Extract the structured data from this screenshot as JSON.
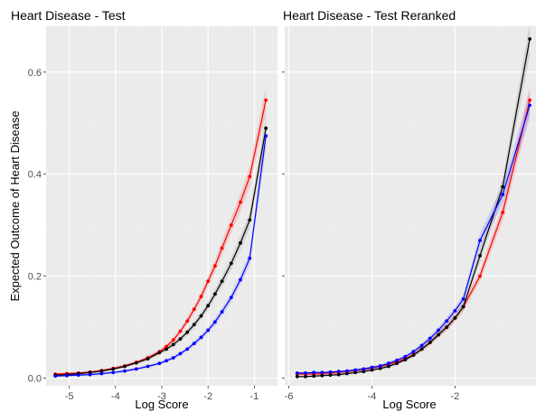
{
  "chart_data": [
    {
      "type": "line",
      "title": "Heart Disease - Test",
      "xlabel": "Log Score",
      "ylabel": "Expected Outcome of Heart Disease",
      "xlim": [
        -5.5,
        -0.5
      ],
      "ylim": [
        -0.015,
        0.69
      ],
      "x_ticks": [
        -5,
        -4,
        -3,
        -2,
        -1
      ],
      "x_tick_labels": [
        "-5",
        "-4",
        "-3",
        "-2",
        "-1"
      ],
      "y_ticks": [
        0.0,
        0.2,
        0.4,
        0.6
      ],
      "y_tick_labels": [
        "0.0",
        "0.2",
        "0.4",
        "0.6"
      ],
      "grid": true,
      "series": [
        {
          "color": "#ff0000",
          "x": [
            -5.3,
            -5.05,
            -4.8,
            -4.55,
            -4.3,
            -4.05,
            -3.8,
            -3.55,
            -3.3,
            -3.05,
            -2.9,
            -2.75,
            -2.6,
            -2.45,
            -2.3,
            -2.15,
            -2.0,
            -1.85,
            -1.7,
            -1.5,
            -1.3,
            -1.1,
            -0.75
          ],
          "y": [
            0.008,
            0.009,
            0.01,
            0.012,
            0.015,
            0.019,
            0.024,
            0.031,
            0.04,
            0.052,
            0.062,
            0.075,
            0.092,
            0.112,
            0.135,
            0.16,
            0.19,
            0.22,
            0.255,
            0.3,
            0.345,
            0.395,
            0.545
          ]
        },
        {
          "color": "#000000",
          "x": [
            -5.3,
            -5.05,
            -4.8,
            -4.55,
            -4.3,
            -4.05,
            -3.8,
            -3.55,
            -3.3,
            -3.05,
            -2.9,
            -2.75,
            -2.6,
            -2.45,
            -2.3,
            -2.15,
            -2.0,
            -1.85,
            -1.7,
            -1.5,
            -1.3,
            -1.1,
            -0.75
          ],
          "y": [
            0.006,
            0.007,
            0.009,
            0.011,
            0.014,
            0.018,
            0.023,
            0.03,
            0.038,
            0.05,
            0.057,
            0.066,
            0.077,
            0.09,
            0.105,
            0.122,
            0.142,
            0.165,
            0.19,
            0.225,
            0.265,
            0.31,
            0.49
          ]
        },
        {
          "color": "#0000ff",
          "x": [
            -5.3,
            -5.05,
            -4.8,
            -4.55,
            -4.3,
            -4.05,
            -3.8,
            -3.55,
            -3.3,
            -3.05,
            -2.9,
            -2.75,
            -2.6,
            -2.45,
            -2.3,
            -2.15,
            -2.0,
            -1.85,
            -1.7,
            -1.5,
            -1.3,
            -1.1,
            -0.75
          ],
          "y": [
            0.004,
            0.005,
            0.006,
            0.007,
            0.009,
            0.011,
            0.014,
            0.018,
            0.023,
            0.029,
            0.034,
            0.04,
            0.048,
            0.057,
            0.068,
            0.08,
            0.094,
            0.11,
            0.13,
            0.158,
            0.193,
            0.235,
            0.475
          ]
        }
      ]
    },
    {
      "type": "line",
      "title": "Heart Disease - Test Reranked",
      "xlabel": "Log Score",
      "xlim": [
        -6.1,
        -0.05
      ],
      "ylim": [
        -0.015,
        0.69
      ],
      "x_ticks": [
        -6,
        -4,
        -2
      ],
      "x_tick_labels": [
        "-6",
        "-4",
        "-2"
      ],
      "y_ticks": [
        0.0,
        0.2,
        0.4,
        0.6
      ],
      "grid": true,
      "series": [
        {
          "color": "#ff0000",
          "x": [
            -5.8,
            -5.6,
            -5.4,
            -5.2,
            -5.0,
            -4.8,
            -4.6,
            -4.4,
            -4.2,
            -4.0,
            -3.8,
            -3.6,
            -3.4,
            -3.2,
            -3.0,
            -2.8,
            -2.6,
            -2.4,
            -2.2,
            -2.0,
            -1.8,
            -1.4,
            -0.85,
            -0.2
          ],
          "y": [
            0.008,
            0.008,
            0.008,
            0.009,
            0.01,
            0.011,
            0.013,
            0.015,
            0.017,
            0.02,
            0.023,
            0.027,
            0.032,
            0.038,
            0.046,
            0.057,
            0.07,
            0.085,
            0.1,
            0.118,
            0.14,
            0.2,
            0.325,
            0.545
          ]
        },
        {
          "color": "#000000",
          "x": [
            -5.8,
            -5.6,
            -5.4,
            -5.2,
            -5.0,
            -4.8,
            -4.6,
            -4.4,
            -4.2,
            -4.0,
            -3.8,
            -3.6,
            -3.4,
            -3.2,
            -3.0,
            -2.8,
            -2.6,
            -2.4,
            -2.2,
            -2.0,
            -1.8,
            -1.4,
            -0.85,
            -0.2
          ],
          "y": [
            0.003,
            0.003,
            0.004,
            0.005,
            0.006,
            0.007,
            0.009,
            0.011,
            0.013,
            0.016,
            0.019,
            0.023,
            0.029,
            0.036,
            0.045,
            0.057,
            0.07,
            0.085,
            0.1,
            0.118,
            0.14,
            0.24,
            0.375,
            0.665
          ]
        },
        {
          "color": "#0000ff",
          "x": [
            -5.8,
            -5.6,
            -5.4,
            -5.2,
            -5.0,
            -4.8,
            -4.6,
            -4.4,
            -4.2,
            -4.0,
            -3.8,
            -3.6,
            -3.4,
            -3.2,
            -3.0,
            -2.8,
            -2.6,
            -2.4,
            -2.2,
            -2.0,
            -1.8,
            -1.4,
            -0.85,
            -0.2
          ],
          "y": [
            0.01,
            0.01,
            0.011,
            0.011,
            0.012,
            0.013,
            0.014,
            0.016,
            0.018,
            0.021,
            0.024,
            0.029,
            0.035,
            0.042,
            0.052,
            0.064,
            0.078,
            0.094,
            0.112,
            0.132,
            0.155,
            0.27,
            0.36,
            0.535
          ]
        }
      ]
    }
  ]
}
